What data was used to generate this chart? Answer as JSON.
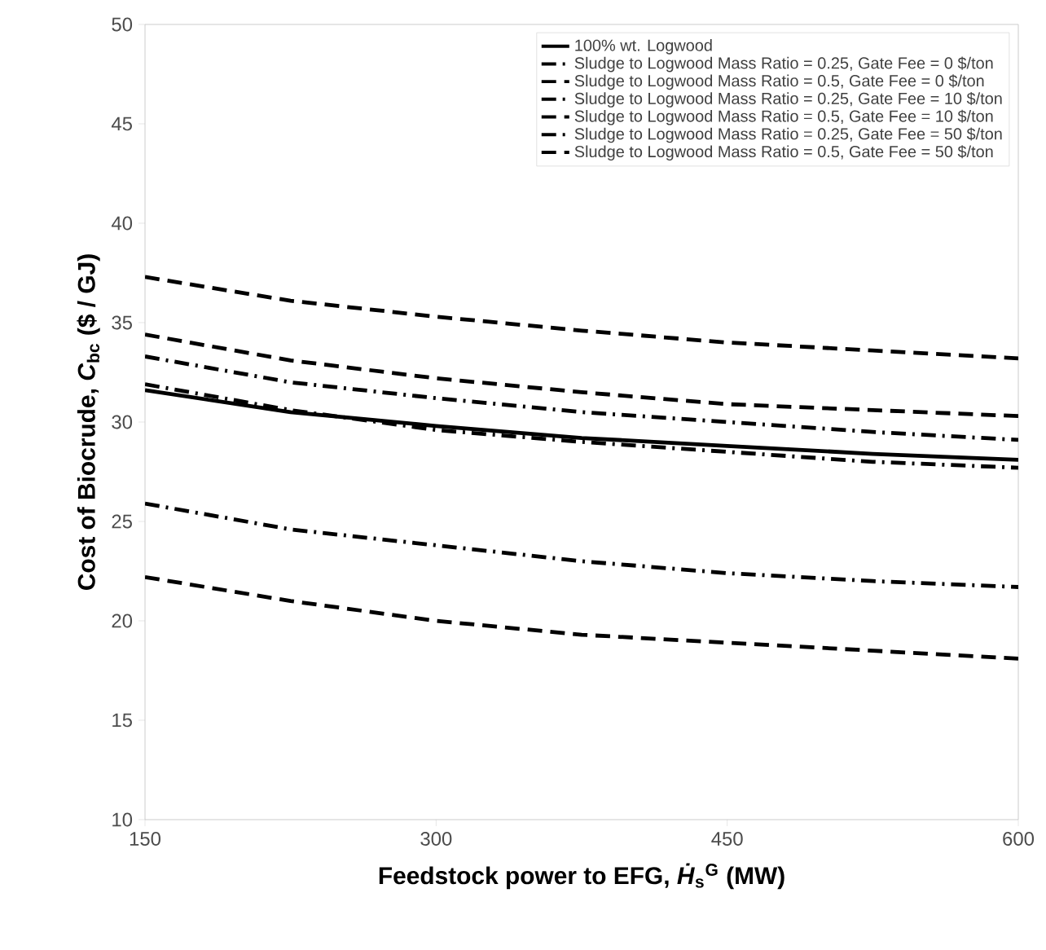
{
  "chart_data": {
    "type": "line",
    "xlabel": "Feedstock power to EFG, *Ḣ*$_{s}$$^{G}$ (MW)",
    "ylabel": "Cost of Biocrude, *C*$_{bc}$ ($ / GJ)",
    "x": [
      150,
      225,
      300,
      375,
      450,
      525,
      600
    ],
    "xlim": [
      150,
      600
    ],
    "xticks": [
      150,
      300,
      450,
      600
    ],
    "ylim": [
      10,
      50
    ],
    "yticks": [
      10,
      15,
      20,
      25,
      30,
      35,
      40,
      45,
      50
    ],
    "legend": "top right",
    "marker": "none",
    "series": [
      {
        "name": "100% wt. Logwood",
        "color": "#000000",
        "line_style": "solid",
        "values": [
          31.6,
          30.5,
          29.8,
          29.2,
          28.8,
          28.4,
          28.1
        ]
      },
      {
        "name": "Sludge to Logwood Mass Ratio = 0.25, Gate Fee = 0 $/ton",
        "color": "#000000",
        "line_style": "dashdot",
        "values": [
          33.3,
          32.0,
          31.2,
          30.5,
          30.0,
          29.5,
          29.1
        ]
      },
      {
        "name": "Sludge to Logwood Mass Ratio = 0.5, Gate Fee = 0 $/ton",
        "color": "#000000",
        "line_style": "dashed",
        "values": [
          37.3,
          36.1,
          35.3,
          34.6,
          34.0,
          33.6,
          33.2
        ]
      },
      {
        "name": "Sludge to Logwood Mass Ratio = 0.25, Gate Fee = 10 $/ton",
        "color": "#000000",
        "line_style": "dashdot",
        "values": [
          31.9,
          30.6,
          29.6,
          29.0,
          28.5,
          28.0,
          27.7
        ]
      },
      {
        "name": "Sludge to Logwood Mass Ratio = 0.5, Gate Fee = 10 $/ton",
        "color": "#000000",
        "line_style": "dashed",
        "values": [
          34.4,
          33.1,
          32.2,
          31.5,
          30.9,
          30.6,
          30.3
        ]
      },
      {
        "name": "Sludge to Logwood Mass Ratio = 0.25, Gate Fee = 50 $/ton",
        "color": "#000000",
        "line_style": "dashdot",
        "values": [
          25.9,
          24.6,
          23.8,
          23.0,
          22.4,
          22.0,
          21.7
        ]
      },
      {
        "name": "Sludge to Logwood Mass Ratio = 0.5, Gate Fee = 50 $/ton",
        "color": "#000000",
        "line_style": "dashed",
        "values": [
          22.2,
          21.0,
          20.0,
          19.3,
          18.9,
          18.5,
          18.1
        ]
      }
    ]
  }
}
